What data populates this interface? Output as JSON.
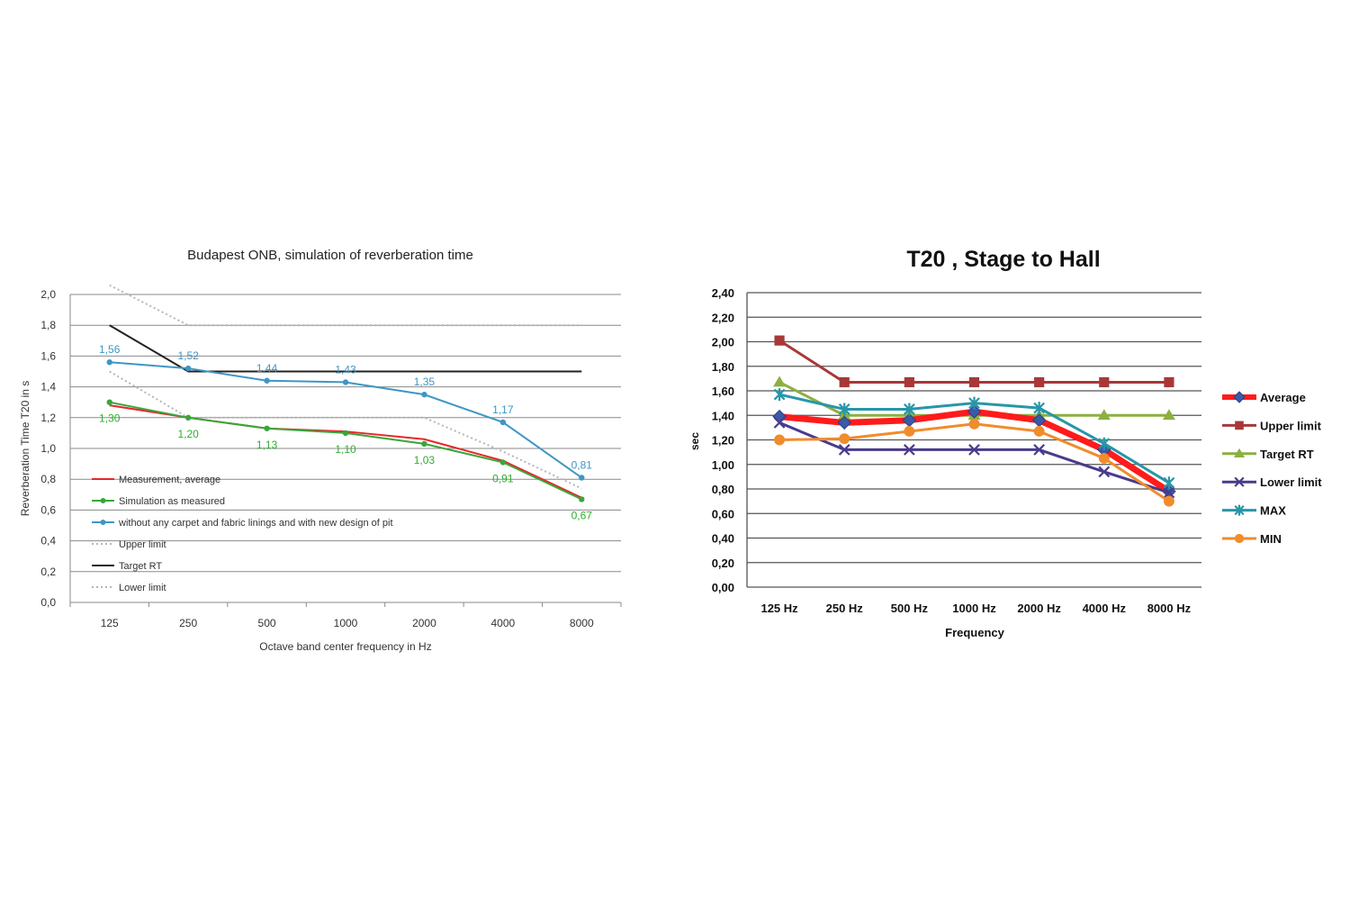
{
  "chart_data": [
    {
      "type": "line",
      "title": "Budapest ONB, simulation of reverberation time",
      "xlabel": "Octave band center frequency in Hz",
      "ylabel": "Reverberation Time T20 in s",
      "categories": [
        "125",
        "250",
        "500",
        "1000",
        "2000",
        "4000",
        "8000"
      ],
      "ylim": [
        0,
        2.0
      ],
      "yticks": [
        "0,0",
        "0,2",
        "0,4",
        "0,6",
        "0,8",
        "1,0",
        "1,2",
        "1,4",
        "1,6",
        "1,8",
        "2,0"
      ],
      "grid": true,
      "legend_position": "inside-bottom-left",
      "series": [
        {
          "name": "Measurement, average",
          "color": "#e8262a",
          "style": "solid",
          "marker": "none",
          "values": [
            1.28,
            1.2,
            1.13,
            1.11,
            1.06,
            0.92,
            0.68
          ]
        },
        {
          "name": "Simulation as measured",
          "color": "#3aa63a",
          "style": "solid",
          "marker": "dot",
          "values": [
            1.3,
            1.2,
            1.13,
            1.1,
            1.03,
            0.91,
            0.67
          ],
          "labels": [
            "1,30",
            "1,20",
            "1,13",
            "1,10",
            "1,03",
            "0,91",
            "0,67"
          ],
          "label_color": "#2fae2f"
        },
        {
          "name": "without any carpet and fabric linings and with new design of pit",
          "color": "#3e96c4",
          "style": "solid",
          "marker": "dot",
          "values": [
            1.56,
            1.52,
            1.44,
            1.43,
            1.35,
            1.17,
            0.81
          ],
          "labels": [
            "1,56",
            "1,52",
            "1,44",
            "1,43",
            "1,35",
            "1,17",
            "0,81"
          ],
          "label_color": "#3e96c4"
        },
        {
          "name": "Upper limit",
          "color": "#b5b5b5",
          "style": "dotted",
          "marker": "none",
          "values": [
            2.06,
            1.8,
            1.8,
            1.8,
            1.8,
            1.8,
            1.8
          ]
        },
        {
          "name": "Target RT",
          "color": "#222222",
          "style": "solid",
          "marker": "none",
          "values": [
            1.8,
            1.5,
            1.5,
            1.5,
            1.5,
            1.5,
            1.5
          ]
        },
        {
          "name": "Lower limit",
          "color": "#b5b5b5",
          "style": "dotted",
          "marker": "none",
          "values": [
            1.5,
            1.2,
            1.2,
            1.2,
            1.2,
            0.98,
            0.74
          ]
        }
      ]
    },
    {
      "type": "line",
      "title": "T20 , Stage to Hall",
      "xlabel": "Frequency",
      "ylabel": "sec",
      "categories": [
        "125 Hz",
        "250 Hz",
        "500 Hz",
        "1000 Hz",
        "2000 Hz",
        "4000 Hz",
        "8000 Hz"
      ],
      "ylim": [
        0,
        2.4
      ],
      "yticks": [
        "0,00",
        "0,20",
        "0,40",
        "0,60",
        "0,80",
        "1,00",
        "1,20",
        "1,40",
        "1,60",
        "1,80",
        "2,00",
        "2,20",
        "2,40"
      ],
      "grid": true,
      "legend_position": "right",
      "series": [
        {
          "name": "Average",
          "color": "#ff1b1b",
          "marker": "diamond",
          "marker_color": "#3a5ba8",
          "values": [
            1.39,
            1.34,
            1.36,
            1.43,
            1.36,
            1.12,
            0.78
          ]
        },
        {
          "name": "Upper limit",
          "color": "#a83838",
          "marker": "square",
          "marker_color": "#a83838",
          "values": [
            2.01,
            1.67,
            1.67,
            1.67,
            1.67,
            1.67,
            1.67
          ]
        },
        {
          "name": "Target RT",
          "color": "#8cb040",
          "marker": "triangle",
          "marker_color": "#8cb040",
          "values": [
            1.67,
            1.4,
            1.4,
            1.4,
            1.4,
            1.4,
            1.4
          ]
        },
        {
          "name": "Lower limit",
          "color": "#4b3a8c",
          "marker": "x",
          "marker_color": "#4b3a8c",
          "values": [
            1.34,
            1.12,
            1.12,
            1.12,
            1.12,
            0.94,
            0.77
          ]
        },
        {
          "name": "MAX",
          "color": "#2796a8",
          "marker": "star",
          "marker_color": "#2796a8",
          "values": [
            1.57,
            1.45,
            1.45,
            1.5,
            1.46,
            1.17,
            0.85
          ]
        },
        {
          "name": "MIN",
          "color": "#f08c2c",
          "marker": "circle",
          "marker_color": "#f08c2c",
          "values": [
            1.2,
            1.21,
            1.27,
            1.33,
            1.27,
            1.05,
            0.7
          ]
        }
      ]
    }
  ]
}
